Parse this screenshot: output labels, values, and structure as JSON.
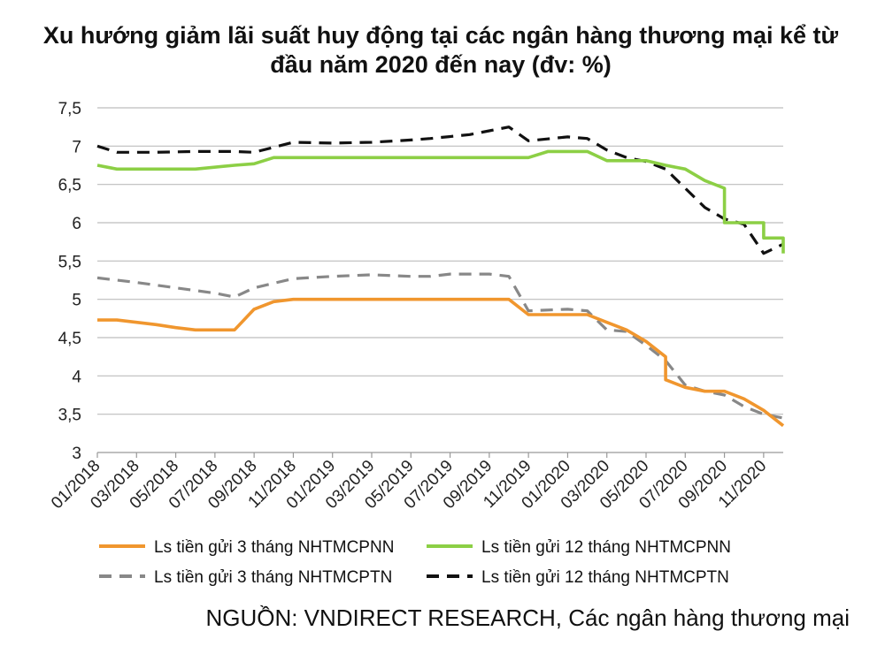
{
  "title": "Xu hướng giảm lãi suất huy động tại các ngân hàng thương mại kể từ đầu năm 2020 đến nay (đv: %)",
  "source": "NGUỒN: VNDIRECT RESEARCH, Các ngân hàng thương mại",
  "chart_data": {
    "type": "line",
    "title": "Xu hướng giảm lãi suất huy động tại các ngân hàng thương mại kể từ đầu năm 2020 đến nay (đv: %)",
    "xlabel": "",
    "ylabel": "",
    "ylim": [
      3,
      7.5
    ],
    "yticks": [
      "3",
      "3,5",
      "4",
      "4,5",
      "5",
      "5,5",
      "6",
      "6,5",
      "7",
      "7,5"
    ],
    "ytick_values": [
      3,
      3.5,
      4,
      4.5,
      5,
      5.5,
      6,
      6.5,
      7,
      7.5
    ],
    "xlim": [
      "2018-01",
      "2020-12"
    ],
    "xtick_labels": [
      "01/2018",
      "03/2018",
      "05/2018",
      "07/2018",
      "09/2018",
      "11/2018",
      "01/2019",
      "03/2019",
      "05/2019",
      "07/2019",
      "09/2019",
      "11/2019",
      "01/2020",
      "03/2020",
      "05/2020",
      "07/2020",
      "09/2020",
      "11/2020"
    ],
    "grid": true,
    "legend_position": "bottom",
    "series": [
      {
        "name": "Ls tiền gửi 3 tháng NHTMCPNN",
        "color": "#f0962e",
        "style": "solid",
        "points": [
          [
            "2018-01",
            4.73
          ],
          [
            "2018-02",
            4.73
          ],
          [
            "2018-03",
            4.7
          ],
          [
            "2018-04",
            4.67
          ],
          [
            "2018-05",
            4.63
          ],
          [
            "2018-06",
            4.6
          ],
          [
            "2018-07",
            4.6
          ],
          [
            "2018-08",
            4.6
          ],
          [
            "2018-09",
            4.87
          ],
          [
            "2018-10",
            4.97
          ],
          [
            "2018-11",
            5.0
          ],
          [
            "2018-12",
            5.0
          ],
          [
            "2019-03",
            5.0
          ],
          [
            "2019-06",
            5.0
          ],
          [
            "2019-09",
            5.0
          ],
          [
            "2019-10",
            5.0
          ],
          [
            "2019-11",
            4.8
          ],
          [
            "2019-12",
            4.8
          ],
          [
            "2020-01",
            4.8
          ],
          [
            "2020-02",
            4.8
          ],
          [
            "2020-03",
            4.7
          ],
          [
            "2020-04",
            4.6
          ],
          [
            "2020-05",
            4.45
          ],
          [
            "2020-06",
            4.25
          ],
          [
            "2020-06",
            3.95
          ],
          [
            "2020-07",
            3.85
          ],
          [
            "2020-08",
            3.8
          ],
          [
            "2020-09",
            3.8
          ],
          [
            "2020-10",
            3.7
          ],
          [
            "2020-11",
            3.55
          ],
          [
            "2020-12",
            3.35
          ],
          [
            "2020-12",
            3.35
          ]
        ]
      },
      {
        "name": "Ls tiền gửi 12 tháng NHTMCPNN",
        "color": "#8ccf45",
        "style": "solid",
        "points": [
          [
            "2018-01",
            6.75
          ],
          [
            "2018-02",
            6.7
          ],
          [
            "2018-05",
            6.7
          ],
          [
            "2018-06",
            6.7
          ],
          [
            "2018-08",
            6.75
          ],
          [
            "2018-09",
            6.77
          ],
          [
            "2018-10",
            6.85
          ],
          [
            "2019-10",
            6.85
          ],
          [
            "2019-11",
            6.85
          ],
          [
            "2019-12",
            6.93
          ],
          [
            "2020-01",
            6.93
          ],
          [
            "2020-02",
            6.93
          ],
          [
            "2020-03",
            6.81
          ],
          [
            "2020-04",
            6.81
          ],
          [
            "2020-05",
            6.81
          ],
          [
            "2020-06",
            6.75
          ],
          [
            "2020-07",
            6.7
          ],
          [
            "2020-08",
            6.55
          ],
          [
            "2020-09",
            6.45
          ],
          [
            "2020-09",
            6.0
          ],
          [
            "2020-10",
            6.0
          ],
          [
            "2020-11",
            6.0
          ],
          [
            "2020-11",
            5.8
          ],
          [
            "2020-12",
            5.8
          ],
          [
            "2020-12",
            5.6
          ],
          [
            "2020-12",
            5.6
          ]
        ]
      },
      {
        "name": "Ls tiền gửi 3 tháng NHTMCPTN",
        "color": "#888888",
        "style": "dashed",
        "points": [
          [
            "2018-01",
            5.28
          ],
          [
            "2018-03",
            5.22
          ],
          [
            "2018-05",
            5.15
          ],
          [
            "2018-07",
            5.08
          ],
          [
            "2018-08",
            5.03
          ],
          [
            "2018-09",
            5.15
          ],
          [
            "2018-11",
            5.27
          ],
          [
            "2019-01",
            5.3
          ],
          [
            "2019-03",
            5.32
          ],
          [
            "2019-05",
            5.3
          ],
          [
            "2019-06",
            5.3
          ],
          [
            "2019-07",
            5.33
          ],
          [
            "2019-09",
            5.33
          ],
          [
            "2019-10",
            5.3
          ],
          [
            "2019-11",
            4.85
          ],
          [
            "2020-01",
            4.87
          ],
          [
            "2020-02",
            4.85
          ],
          [
            "2020-03",
            4.6
          ],
          [
            "2020-04",
            4.58
          ],
          [
            "2020-05",
            4.4
          ],
          [
            "2020-06",
            4.2
          ],
          [
            "2020-07",
            3.88
          ],
          [
            "2020-08",
            3.8
          ],
          [
            "2020-09",
            3.75
          ],
          [
            "2020-10",
            3.6
          ],
          [
            "2020-11",
            3.5
          ],
          [
            "2020-12",
            3.45
          ]
        ]
      },
      {
        "name": "Ls tiền gửi 12 tháng NHTMCPTN",
        "color": "#111111",
        "style": "dashed",
        "points": [
          [
            "2018-01",
            7.0
          ],
          [
            "2018-02",
            6.92
          ],
          [
            "2018-04",
            6.92
          ],
          [
            "2018-06",
            6.93
          ],
          [
            "2018-08",
            6.93
          ],
          [
            "2018-09",
            6.92
          ],
          [
            "2018-11",
            7.05
          ],
          [
            "2019-01",
            7.04
          ],
          [
            "2019-03",
            7.05
          ],
          [
            "2019-05",
            7.08
          ],
          [
            "2019-06",
            7.1
          ],
          [
            "2019-08",
            7.15
          ],
          [
            "2019-09",
            7.2
          ],
          [
            "2019-10",
            7.25
          ],
          [
            "2019-11",
            7.07
          ],
          [
            "2020-01",
            7.12
          ],
          [
            "2020-02",
            7.1
          ],
          [
            "2020-03",
            6.95
          ],
          [
            "2020-04",
            6.85
          ],
          [
            "2020-05",
            6.8
          ],
          [
            "2020-06",
            6.7
          ],
          [
            "2020-07",
            6.45
          ],
          [
            "2020-08",
            6.2
          ],
          [
            "2020-09",
            6.05
          ],
          [
            "2020-10",
            5.98
          ],
          [
            "2020-11",
            5.6
          ],
          [
            "2020-12",
            5.72
          ]
        ]
      }
    ]
  }
}
